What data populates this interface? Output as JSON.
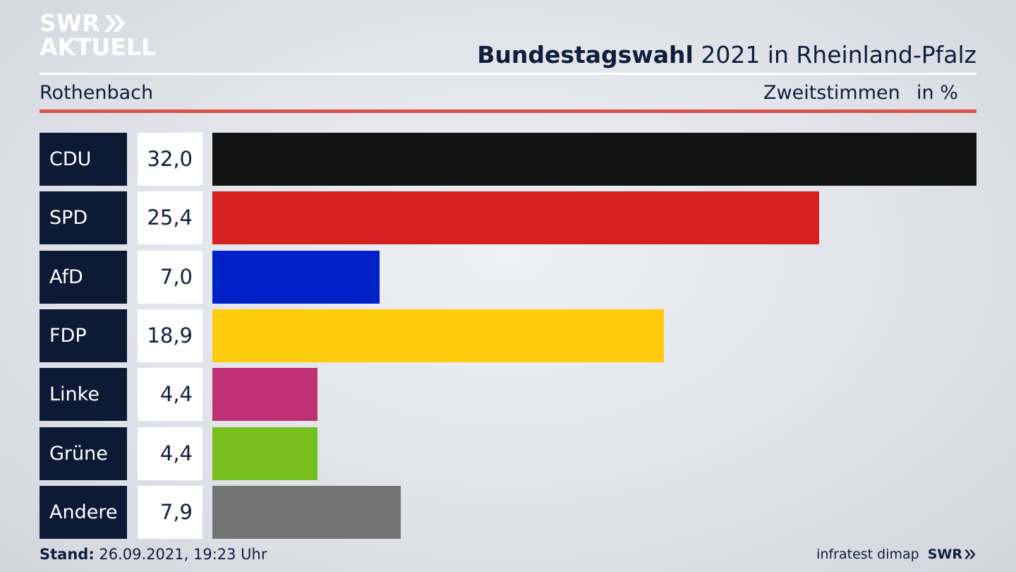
{
  "brand": {
    "logo_line1": "SWR",
    "logo_line2": "AKTUELL",
    "footer_logo": "SWR"
  },
  "header": {
    "title_bold": "Bundestagswahl",
    "title_rest": " 2021 in Rheinland-Pfalz",
    "region": "Rothenbach",
    "measure": "Zweitstimmen",
    "unit": "in %"
  },
  "footer": {
    "stand_label": "Stand:",
    "stand_value": " 26.09.2021, 19:23 Uhr",
    "source": "infratest dimap"
  },
  "colors": {
    "navy": "#0c1a36",
    "accent_red_rule": "#d9534a"
  },
  "chart_data": {
    "type": "bar",
    "orientation": "horizontal",
    "categories": [
      "CDU",
      "SPD",
      "AfD",
      "FDP",
      "Linke",
      "Grüne",
      "Andere"
    ],
    "values": [
      32.0,
      25.4,
      7.0,
      18.9,
      4.4,
      4.4,
      7.9
    ],
    "value_labels": [
      "32,0",
      "25,4",
      "7,0",
      "18,9",
      "4,4",
      "4,4",
      "7,9"
    ],
    "colors": [
      "#131313",
      "#d72020",
      "#0021c8",
      "#fecc0a",
      "#c03075",
      "#78be1e",
      "#737373"
    ],
    "xlim": [
      0,
      32.0
    ],
    "grid": false
  }
}
